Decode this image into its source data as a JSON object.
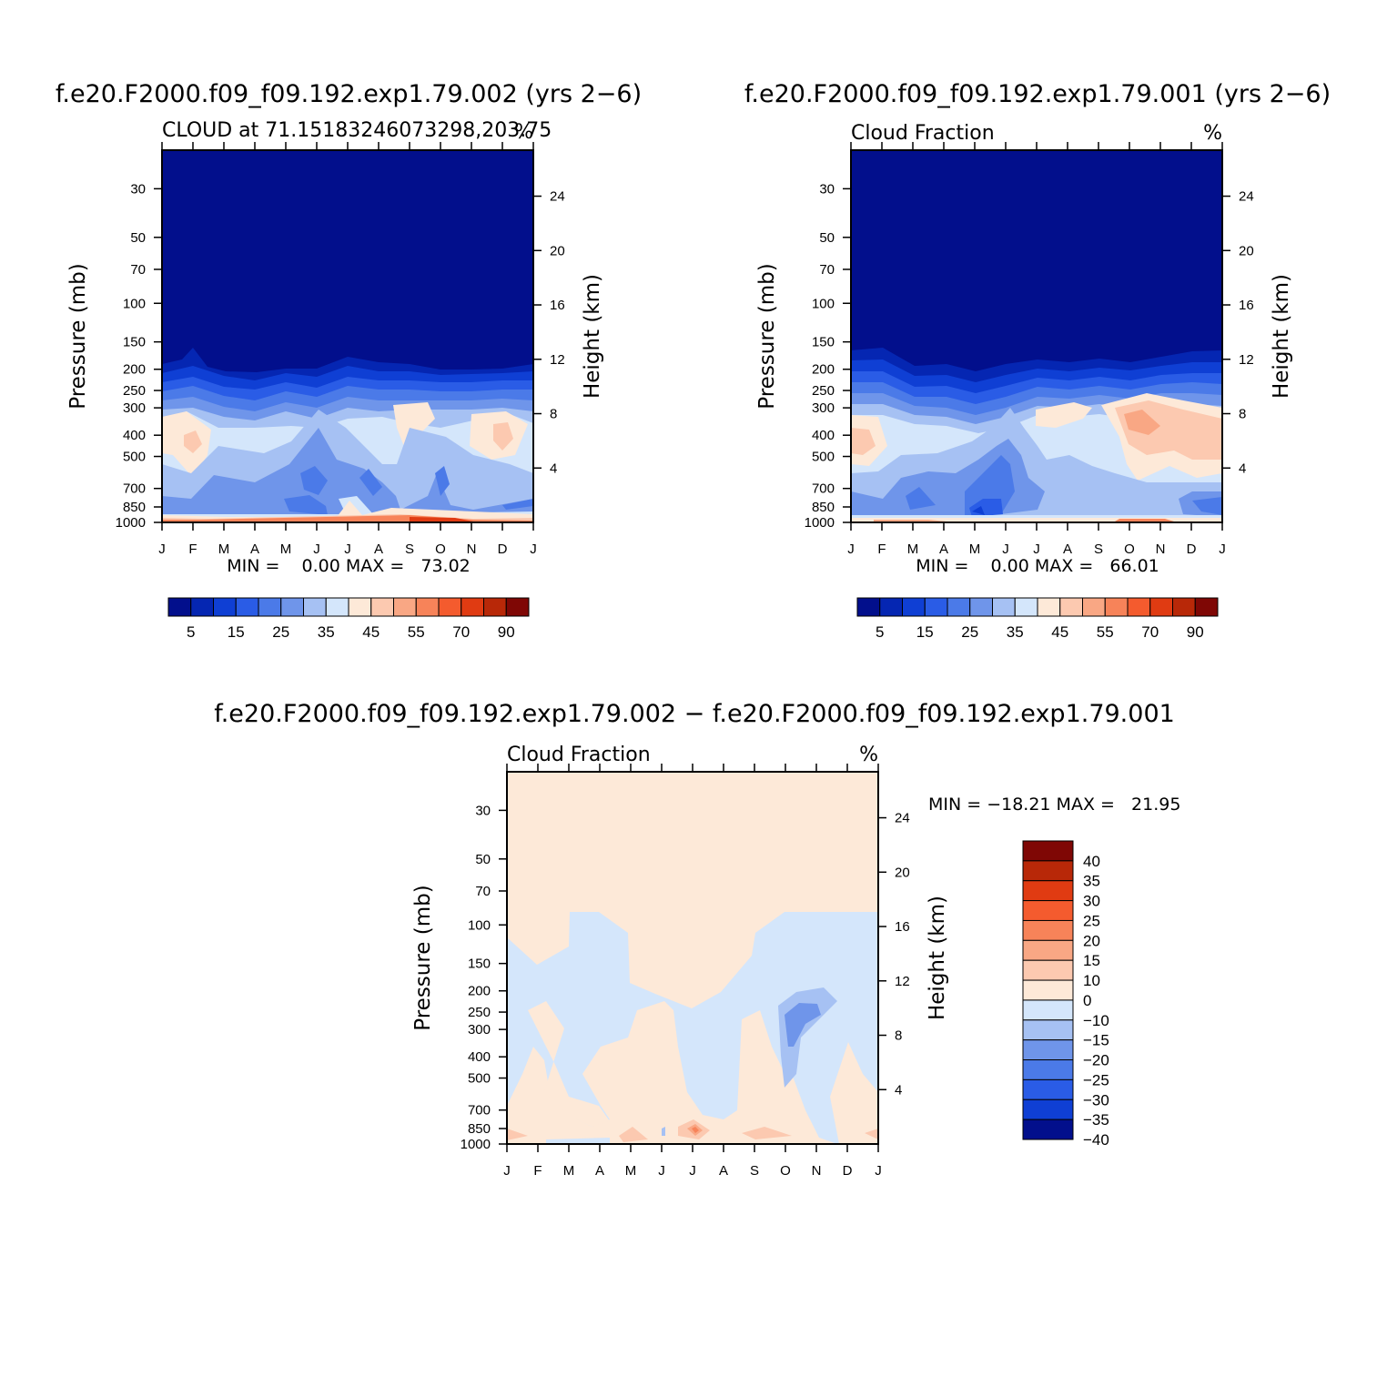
{
  "chart_data": [
    {
      "type": "heatmap",
      "title": "f.e20.F2000.f09_f09.192.exp1.79.002 (yrs 2−6)",
      "subtitle_left": "CLOUD at 71.15183246073298,203.75",
      "subtitle_right": "%",
      "ylabel": "Pressure (mb)",
      "ylabel_right": "Height (km)",
      "x_ticks": [
        "J",
        "F",
        "M",
        "A",
        "M",
        "J",
        "J",
        "A",
        "S",
        "O",
        "N",
        "D",
        "J"
      ],
      "y_ticks": [
        "30",
        "50",
        "70",
        "100",
        "150",
        "200",
        "250",
        "300",
        "400",
        "500",
        "700",
        "850",
        "1000"
      ],
      "y_ticks_right": [
        "24",
        "20",
        "16",
        "12",
        "8",
        "4"
      ],
      "ylim": [
        1000,
        20
      ],
      "stats": "MIN =    0.00 MAX =   73.02",
      "min": 0.0,
      "max": 73.02,
      "colorbar_labels": [
        "5",
        "15",
        "25",
        "35",
        "45",
        "55",
        "70",
        "90"
      ],
      "levels": [
        0,
        5,
        10,
        15,
        20,
        25,
        30,
        35,
        40,
        45,
        50,
        55,
        60,
        70,
        80,
        90,
        100
      ],
      "low_cloud_pattern": {
        "months": [
          "J",
          "F",
          "M",
          "A",
          "M",
          "J",
          "J",
          "A",
          "S",
          "O",
          "N",
          "D",
          "J"
        ],
        "cloud_top_pressure_mb": [
          205,
          180,
          225,
          230,
          225,
          222,
          200,
          210,
          215,
          225,
          225,
          220,
          210
        ],
        "midlevel_max_pct": [
          40,
          45,
          33,
          30,
          20,
          18,
          32,
          35,
          42,
          30,
          30,
          45,
          40
        ]
      }
    },
    {
      "type": "heatmap",
      "title": "f.e20.F2000.f09_f09.192.exp1.79.001 (yrs 2−6)",
      "subtitle_left": "Cloud Fraction",
      "subtitle_right": "%",
      "ylabel": "Pressure (mb)",
      "ylabel_right": "Height (km)",
      "x_ticks": [
        "J",
        "F",
        "M",
        "A",
        "M",
        "J",
        "J",
        "A",
        "S",
        "O",
        "N",
        "D",
        "J"
      ],
      "y_ticks": [
        "30",
        "50",
        "70",
        "100",
        "150",
        "200",
        "250",
        "300",
        "400",
        "500",
        "700",
        "850",
        "1000"
      ],
      "y_ticks_right": [
        "24",
        "20",
        "16",
        "12",
        "8",
        "4"
      ],
      "ylim": [
        1000,
        20
      ],
      "stats": "MIN =    0.00 MAX =   66.01",
      "min": 0.0,
      "max": 66.01,
      "colorbar_labels": [
        "5",
        "15",
        "25",
        "35",
        "45",
        "55",
        "70",
        "90"
      ],
      "levels": [
        0,
        5,
        10,
        15,
        20,
        25,
        30,
        35,
        40,
        45,
        50,
        55,
        60,
        70,
        80,
        90,
        100
      ],
      "low_cloud_pattern": {
        "months": [
          "J",
          "F",
          "M",
          "A",
          "M",
          "J",
          "J",
          "A",
          "S",
          "O",
          "N",
          "D",
          "J"
        ],
        "cloud_top_pressure_mb": [
          190,
          185,
          215,
          215,
          230,
          220,
          205,
          200,
          205,
          210,
          205,
          195,
          190
        ],
        "midlevel_max_pct": [
          45,
          35,
          32,
          30,
          15,
          18,
          28,
          40,
          35,
          55,
          52,
          45,
          45
        ]
      }
    },
    {
      "type": "heatmap",
      "title": "f.e20.F2000.f09_f09.192.exp1.79.002 − f.e20.F2000.f09_f09.192.exp1.79.001",
      "subtitle_left": "Cloud Fraction",
      "subtitle_right": "%",
      "ylabel": "Pressure (mb)",
      "ylabel_right": "Height (km)",
      "x_ticks": [
        "J",
        "F",
        "M",
        "A",
        "M",
        "J",
        "J",
        "A",
        "S",
        "O",
        "N",
        "D",
        "J"
      ],
      "y_ticks": [
        "30",
        "50",
        "70",
        "100",
        "150",
        "200",
        "250",
        "300",
        "400",
        "500",
        "700",
        "850",
        "1000"
      ],
      "y_ticks_right": [
        "24",
        "20",
        "16",
        "12",
        "8",
        "4"
      ],
      "ylim": [
        1000,
        20
      ],
      "stats": "MIN = −18.21 MAX =   21.95",
      "min": -18.21,
      "max": 21.95,
      "colorbar_labels": [
        "40",
        "35",
        "30",
        "25",
        "20",
        "15",
        "10",
        "0",
        "−10",
        "−15",
        "−20",
        "−25",
        "−30",
        "−35",
        "−40"
      ],
      "levels": [
        -40,
        -35,
        -30,
        -25,
        -20,
        -15,
        -10,
        0,
        10,
        15,
        20,
        25,
        30,
        35,
        40
      ]
    }
  ],
  "colors": {
    "seq": [
      "#020f8c",
      "#0526b2",
      "#0f3fd4",
      "#2a5ce6",
      "#4b7ae8",
      "#6f95ea",
      "#a6c1f3",
      "#d4e6fb",
      "#fde9d8",
      "#fcc9b0",
      "#f9a784",
      "#f78359",
      "#f45b2e",
      "#e03b12",
      "#b82808",
      "#7f0705"
    ],
    "div": [
      "#7f0705",
      "#b82808",
      "#e03b12",
      "#f45b2e",
      "#f78359",
      "#f9a784",
      "#fcc9b0",
      "#fde9d8",
      "#d4e6fb",
      "#a6c1f3",
      "#6f95ea",
      "#4b7ae8",
      "#2a5ce6",
      "#0f3fd4",
      "#020f8c"
    ]
  }
}
